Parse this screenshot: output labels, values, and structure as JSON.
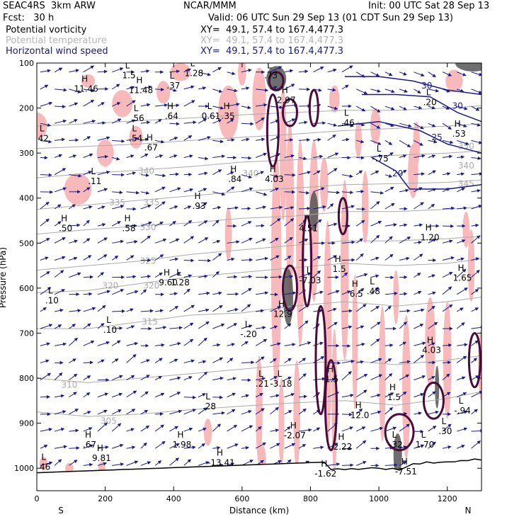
{
  "header": {
    "model": "SEAC4RS  3km ARW",
    "org": "NCAR/MMM",
    "init": "Init: 00 UTC Sat 28 Sep 13",
    "fcst": "Fcst:   30 h",
    "valid": "Valid: 06 UTC Sun 29 Sep 13 (01 CDT Sun 29 Sep 13)",
    "fields": [
      {
        "name": "Potential vorticity",
        "xy": "XY=  49.1, 57.4 to 167.4,477.3",
        "color": "#000000"
      },
      {
        "name": "Potential temperature",
        "xy": "XY=  49.1, 57.4 to 167.4,477.3",
        "color": "#b4b4b4"
      },
      {
        "name": "Horizontal wind speed",
        "xy": "XY=  49.1, 57.4 to 167.4,477.3",
        "color": "#1a1a7a"
      }
    ]
  },
  "colors": {
    "pv_fill": "#f7b9b9",
    "pv_contour": "#4a0a3a",
    "theta": "#aaaaaa",
    "wind_vector": "#1a1a8a",
    "wind_contour": "#1a1a8a",
    "terrain": "#000000",
    "dark_fill": "#555555"
  },
  "chart_data": {
    "type": "cross-section",
    "xlabel": "Distance (km)",
    "ylabel": "Pressure (hPa)",
    "xlim": [
      0,
      1300
    ],
    "ylim": [
      1050,
      100
    ],
    "x_ticks": [
      "0",
      "200",
      "400",
      "600",
      "800",
      "1000",
      "1200"
    ],
    "x_tick_values": [
      0,
      200,
      400,
      600,
      800,
      1000,
      1200
    ],
    "y_ticks": [
      "100",
      "200",
      "300",
      "400",
      "500",
      "600",
      "700",
      "800",
      "900",
      "1000"
    ],
    "y_tick_values": [
      100,
      200,
      300,
      400,
      500,
      600,
      700,
      800,
      900,
      1000
    ],
    "end_labels": {
      "left": "S",
      "right": "N"
    },
    "theta_contours": [
      {
        "label": "305",
        "label_x": 210,
        "label_p": 895,
        "points": [
          [
            0,
            875
          ],
          [
            150,
            885
          ],
          [
            300,
            880
          ],
          [
            450,
            870
          ],
          [
            600,
            862
          ],
          [
            750,
            855
          ],
          [
            900,
            850
          ],
          [
            1050,
            860
          ],
          [
            1200,
            845
          ],
          [
            1300,
            830
          ]
        ]
      },
      {
        "label": "310",
        "label_x": 95,
        "label_p": 815,
        "points": [
          [
            0,
            800
          ],
          [
            150,
            810
          ],
          [
            300,
            800
          ],
          [
            450,
            790
          ],
          [
            600,
            780
          ],
          [
            750,
            770
          ],
          [
            900,
            760
          ],
          [
            1050,
            770
          ],
          [
            1200,
            760
          ],
          [
            1300,
            750
          ]
        ]
      },
      {
        "label": "315",
        "label_x": 330,
        "label_p": 675,
        "points": [
          [
            0,
            690
          ],
          [
            150,
            690
          ],
          [
            300,
            675
          ],
          [
            450,
            660
          ],
          [
            600,
            655
          ],
          [
            750,
            640
          ],
          [
            900,
            630
          ],
          [
            1050,
            640
          ],
          [
            1200,
            630
          ],
          [
            1300,
            620
          ]
        ]
      },
      {
        "label": "320",
        "label_x": 215,
        "label_p": 595,
        "points": [
          [
            0,
            610
          ],
          [
            150,
            605
          ],
          [
            300,
            590
          ],
          [
            450,
            575
          ],
          [
            600,
            565
          ],
          [
            750,
            555
          ],
          [
            900,
            545
          ],
          [
            1050,
            550
          ],
          [
            1200,
            545
          ],
          [
            1300,
            535
          ]
        ]
      },
      {
        "label": "320",
        "label_x": 335,
        "label_p": 595,
        "points": []
      },
      {
        "label": "325",
        "label_x": 325,
        "label_p": 540,
        "points": [
          [
            0,
            560
          ],
          [
            150,
            550
          ],
          [
            300,
            540
          ],
          [
            450,
            525
          ],
          [
            600,
            515
          ],
          [
            750,
            505
          ],
          [
            900,
            495
          ],
          [
            1050,
            495
          ],
          [
            1200,
            490
          ],
          [
            1300,
            485
          ]
        ]
      },
      {
        "label": "330",
        "label_x": 325,
        "label_p": 465,
        "points": [
          [
            0,
            480
          ],
          [
            150,
            470
          ],
          [
            300,
            462
          ],
          [
            450,
            455
          ],
          [
            600,
            445
          ],
          [
            750,
            440
          ],
          [
            900,
            430
          ],
          [
            1050,
            430
          ],
          [
            1200,
            425
          ],
          [
            1300,
            420
          ]
        ]
      },
      {
        "label": "335",
        "label_x": 235,
        "label_p": 410,
        "points": [
          [
            0,
            425
          ],
          [
            150,
            415
          ],
          [
            300,
            405
          ],
          [
            450,
            395
          ],
          [
            600,
            385
          ],
          [
            750,
            378
          ],
          [
            900,
            370
          ],
          [
            1050,
            368
          ],
          [
            1200,
            365
          ],
          [
            1300,
            360
          ]
        ]
      },
      {
        "label": "335",
        "label_x": 335,
        "label_p": 410,
        "points": []
      },
      {
        "label": "340",
        "label_x": 320,
        "label_p": 340,
        "points": [
          [
            0,
            355
          ],
          [
            150,
            345
          ],
          [
            300,
            338
          ],
          [
            450,
            330
          ],
          [
            600,
            320
          ],
          [
            750,
            315
          ],
          [
            900,
            310
          ],
          [
            1050,
            305
          ],
          [
            1200,
            300
          ],
          [
            1300,
            295
          ]
        ]
      },
      {
        "label": "340",
        "label_x": 1255,
        "label_p": 328,
        "points": []
      },
      {
        "label": "345",
        "label_x": 1255,
        "label_p": 368,
        "points": [
          [
            0,
            290
          ],
          [
            150,
            285
          ],
          [
            300,
            280
          ],
          [
            450,
            272
          ],
          [
            600,
            265
          ],
          [
            750,
            258
          ],
          [
            900,
            250
          ],
          [
            1050,
            245
          ],
          [
            1200,
            240
          ],
          [
            1300,
            235
          ]
        ]
      },
      {
        "label": "340",
        "label_x": 625,
        "label_p": 345,
        "points": []
      },
      {
        "label": "350",
        "label_x": 1255,
        "label_p": 285,
        "points": [
          [
            0,
            240
          ],
          [
            150,
            235
          ],
          [
            300,
            228
          ],
          [
            450,
            222
          ],
          [
            600,
            215
          ],
          [
            750,
            210
          ],
          [
            900,
            205
          ],
          [
            1050,
            205
          ],
          [
            1200,
            200
          ],
          [
            1300,
            195
          ]
        ]
      }
    ],
    "pv_extrema": [
      {
        "kind": "L",
        "label": "1.5",
        "x": 265,
        "p": 115
      },
      {
        "kind": "L",
        "label": "1.28",
        "x": 455,
        "p": 110
      },
      {
        "kind": "H",
        "label": "11.46",
        "x": 140,
        "p": 145
      },
      {
        "kind": "H",
        "label": "11.48",
        "x": 300,
        "p": 148
      },
      {
        "kind": "L",
        "label": ".37",
        "x": 395,
        "p": 138
      },
      {
        "kind": "L",
        "label": ".56",
        "x": 290,
        "p": 210
      },
      {
        "kind": "H",
        "label": ".64",
        "x": 390,
        "p": 205
      },
      {
        "kind": "L",
        "label": "0.61",
        "x": 505,
        "p": 205
      },
      {
        "kind": "H",
        "label": ".35",
        "x": 555,
        "p": 205
      },
      {
        "kind": "L",
        "label": ".54",
        "x": 285,
        "p": 255
      },
      {
        "kind": "H",
        "label": ".67",
        "x": 330,
        "p": 275
      },
      {
        "kind": "L",
        "label": ".11",
        "x": 165,
        "p": 350
      },
      {
        "kind": "H",
        "label": ".84",
        "x": 575,
        "p": 345
      },
      {
        "kind": "H",
        "label": "4.03",
        "x": 690,
        "p": 345
      },
      {
        "kind": "H",
        "label": ".93",
        "x": 470,
        "p": 405
      },
      {
        "kind": "H",
        "label": ".50",
        "x": 80,
        "p": 455
      },
      {
        "kind": "H",
        "label": ".58",
        "x": 265,
        "p": 455
      },
      {
        "kind": "H",
        "label": "4.51",
        "x": 790,
        "p": 455
      },
      {
        "kind": "H",
        "label": "1.20",
        "x": 1145,
        "p": 475
      },
      {
        "kind": "L",
        "label": ".73",
        "x": 680,
        "p": 115
      },
      {
        "kind": "H",
        "label": "2.97",
        "x": 725,
        "p": 170
      },
      {
        "kind": "L",
        "label": ".46",
        "x": 905,
        "p": 220
      },
      {
        "kind": "L",
        "label": "-.75",
        "x": 1000,
        "p": 300
      },
      {
        "kind": "L",
        "label": ".20",
        "x": 1145,
        "p": 175
      },
      {
        "kind": "H",
        "label": ".53",
        "x": 1230,
        "p": 245
      },
      {
        "kind": "L",
        "label": ".10",
        "x": 40,
        "p": 615
      },
      {
        "kind": "L",
        "label": ".10",
        "x": 210,
        "p": 680
      },
      {
        "kind": "H",
        "label": "9.60",
        "x": 380,
        "p": 575
      },
      {
        "kind": "L",
        "label": "1.28",
        "x": 415,
        "p": 575
      },
      {
        "kind": "L",
        "label": "-7.03",
        "x": 795,
        "p": 570
      },
      {
        "kind": "L",
        "label": ".48",
        "x": 980,
        "p": 595
      },
      {
        "kind": "H",
        "label": "12.9",
        "x": 715,
        "p": 645
      },
      {
        "kind": "H",
        "label": "1.5",
        "x": 880,
        "p": 545
      },
      {
        "kind": "H",
        "label": "6.5",
        "x": 930,
        "p": 600
      },
      {
        "kind": "L",
        "label": "-.20",
        "x": 615,
        "p": 690
      },
      {
        "kind": "H",
        "label": "1.65",
        "x": 1240,
        "p": 565
      },
      {
        "kind": "H",
        "label": "4.03",
        "x": 1150,
        "p": 725
      },
      {
        "kind": "L",
        "label": ".21",
        "x": 655,
        "p": 800
      },
      {
        "kind": "L",
        "label": "-3.18",
        "x": 710,
        "p": 800
      },
      {
        "kind": "H",
        "label": "1.5",
        "x": 858,
        "p": 790
      },
      {
        "kind": "L",
        "label": ".28",
        "x": 500,
        "p": 850
      },
      {
        "kind": "H",
        "label": "12.0",
        "x": 940,
        "p": 870
      },
      {
        "kind": "H",
        "label": "1.5",
        "x": 1040,
        "p": 830
      },
      {
        "kind": "L",
        "label": "-.94",
        "x": 1240,
        "p": 860
      },
      {
        "kind": "H",
        "label": "-2.07",
        "x": 750,
        "p": 915
      },
      {
        "kind": "H",
        "label": "2.22",
        "x": 890,
        "p": 940
      },
      {
        "kind": "L",
        "label": ".30",
        "x": 1190,
        "p": 905
      },
      {
        "kind": "H",
        "label": ".67",
        "x": 150,
        "p": 935
      },
      {
        "kind": "H",
        "label": "9.81",
        "x": 185,
        "p": 965
      },
      {
        "kind": "H",
        "label": "1.98",
        "x": 420,
        "p": 935
      },
      {
        "kind": "H",
        "label": "-13.41",
        "x": 535,
        "p": 975
      },
      {
        "kind": "L",
        "label": "-32",
        "x": 1045,
        "p": 935
      },
      {
        "kind": "L",
        "label": "1.70",
        "x": 1130,
        "p": 935
      },
      {
        "kind": "H",
        "label": "-1.62",
        "x": 840,
        "p": 1000
      },
      {
        "kind": "H",
        "label": "-7.51",
        "x": 1075,
        "p": 995
      },
      {
        "kind": "L",
        "label": "46",
        "x": 20,
        "p": 985
      },
      {
        "kind": "L",
        "label": "42",
        "x": 15,
        "p": 255
      }
    ],
    "wind_speed_labels": [
      {
        "label": "30",
        "x": 1140,
        "p": 150
      },
      {
        "label": "30",
        "x": 1230,
        "p": 195
      },
      {
        "label": "25",
        "x": 1170,
        "p": 265
      },
      {
        "label": "20",
        "x": 1055,
        "p": 345
      }
    ]
  }
}
